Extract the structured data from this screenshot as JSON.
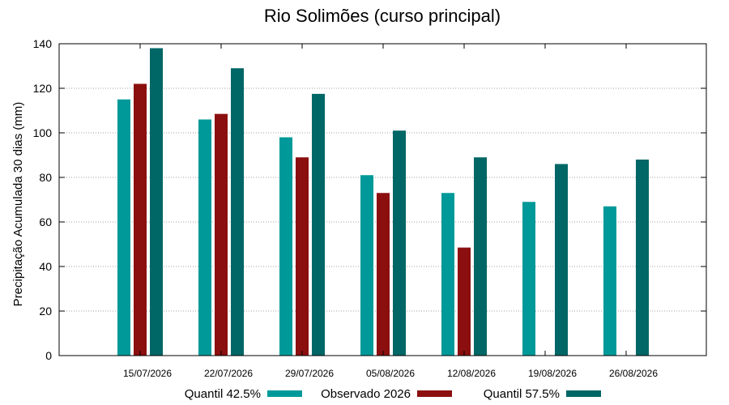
{
  "chart_data": {
    "type": "bar",
    "title": "Rio Solimões (curso principal)",
    "ylabel": "Precipitação Acumulada 30 dias (mm)",
    "xlabel": "",
    "ylim": [
      0,
      140
    ],
    "yticks": [
      0,
      20,
      40,
      60,
      80,
      100,
      120,
      140
    ],
    "grid": true,
    "legend_position": "bottom",
    "categories": [
      "15/07/2026",
      "22/07/2026",
      "29/07/2026",
      "05/08/2026",
      "12/08/2026",
      "19/08/2026",
      "26/08/2026"
    ],
    "series": [
      {
        "name": "Quantil 42.5%",
        "color": "#009999",
        "values": [
          115,
          106,
          98,
          81,
          73,
          69,
          67
        ]
      },
      {
        "name": "Observado 2026",
        "color": "#8b0f0f",
        "values": [
          122,
          108.5,
          89,
          73,
          48.5,
          null,
          null
        ]
      },
      {
        "name": "Quantil 57.5%",
        "color": "#006666",
        "values": [
          138,
          129,
          117.5,
          101,
          89,
          86,
          88
        ]
      }
    ]
  }
}
